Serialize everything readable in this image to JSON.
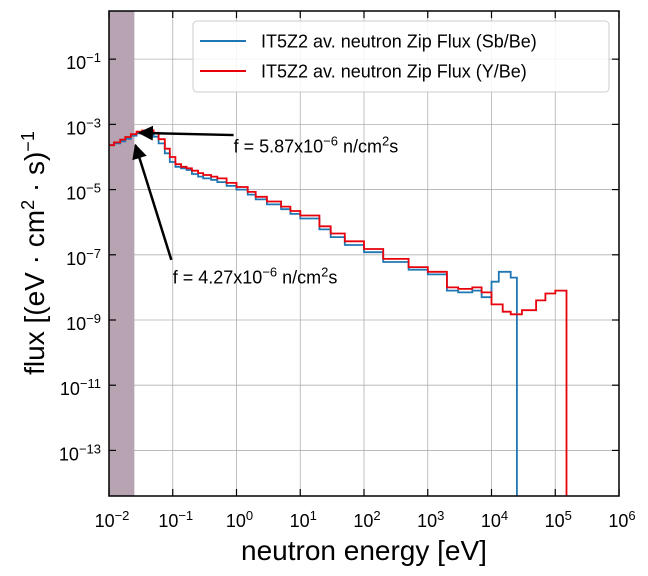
{
  "chart_data": {
    "type": "line",
    "title": "",
    "xlabel": "neutron energy [eV]",
    "ylabel": "flux [(eV · cm² · s)⁻¹]",
    "xscale": "log",
    "yscale": "log",
    "xlim": [
      0.01,
      1000000
    ],
    "ylim": [
      4e-15,
      3
    ],
    "xticks": [
      {
        "value": 0.01,
        "base": "10",
        "exp": "−2"
      },
      {
        "value": 0.1,
        "base": "10",
        "exp": "−1"
      },
      {
        "value": 1,
        "base": "10",
        "exp": "0"
      },
      {
        "value": 10,
        "base": "10",
        "exp": "1"
      },
      {
        "value": 100,
        "base": "10",
        "exp": "2"
      },
      {
        "value": 1000,
        "base": "10",
        "exp": "3"
      },
      {
        "value": 10000,
        "base": "10",
        "exp": "4"
      },
      {
        "value": 100000,
        "base": "10",
        "exp": "5"
      },
      {
        "value": 1000000,
        "base": "10",
        "exp": "6"
      }
    ],
    "yticks": [
      {
        "value": 1e-13,
        "base": "10",
        "exp": "−13"
      },
      {
        "value": 1e-11,
        "base": "10",
        "exp": "−11"
      },
      {
        "value": 1e-09,
        "base": "10",
        "exp": "−9"
      },
      {
        "value": 1e-07,
        "base": "10",
        "exp": "−7"
      },
      {
        "value": 1e-05,
        "base": "10",
        "exp": "−5"
      },
      {
        "value": 0.001,
        "base": "10",
        "exp": "−3"
      },
      {
        "value": 0.1,
        "base": "10",
        "exp": "−1"
      }
    ],
    "grid": true,
    "legend_position": "top-right",
    "shaded_region": {
      "x": [
        0.01,
        0.025
      ],
      "color": "#b8a3b2"
    },
    "series": [
      {
        "name": "IT5Z2 av. neutron Zip Flux (Sb/Be)",
        "color": "#1f77b4",
        "draw": "steps-post",
        "x": [
          0.01,
          0.012,
          0.015,
          0.018,
          0.022,
          0.027,
          0.033,
          0.04,
          0.05,
          0.06,
          0.075,
          0.09,
          0.11,
          0.135,
          0.165,
          0.2,
          0.25,
          0.3,
          0.4,
          0.5,
          0.7,
          1,
          1.5,
          2,
          3,
          5,
          7,
          10,
          20,
          30,
          50,
          100,
          200,
          500,
          1000,
          2000,
          3000,
          5000,
          7000,
          10000,
          13000,
          17000,
          20000,
          25000
        ],
        "y": [
          0.00023,
          0.00026,
          0.0003,
          0.00036,
          0.00045,
          0.00053,
          0.00058,
          0.00055,
          0.00042,
          0.00026,
          0.00013,
          7e-05,
          5e-05,
          4.5e-05,
          4e-05,
          3e-05,
          2.5e-05,
          2.2e-05,
          2e-05,
          1.7e-05,
          1.3e-05,
          1e-05,
          7e-06,
          5e-06,
          3.5e-06,
          2.5e-06,
          1.8e-06,
          1.3e-06,
          6e-07,
          3.5e-07,
          2e-07,
          1.2e-07,
          6e-08,
          3.5e-08,
          2.5e-08,
          8e-09,
          7e-09,
          8e-09,
          5e-09,
          1.5e-08,
          3e-08,
          3e-08,
          2e-08,
          1e-15
        ]
      },
      {
        "name": "IT5Z2 av. neutron Zip Flux (Y/Be)",
        "color": "#e8000b",
        "draw": "steps-post",
        "x": [
          0.01,
          0.012,
          0.015,
          0.018,
          0.022,
          0.027,
          0.033,
          0.04,
          0.05,
          0.06,
          0.075,
          0.09,
          0.11,
          0.135,
          0.165,
          0.2,
          0.25,
          0.3,
          0.4,
          0.5,
          0.7,
          1,
          1.5,
          2,
          3,
          5,
          7,
          10,
          20,
          30,
          50,
          100,
          200,
          500,
          1000,
          2000,
          3000,
          5000,
          7000,
          10000,
          15000,
          20000,
          30000,
          50000,
          70000,
          100000,
          150000
        ],
        "y": [
          0.00023,
          0.00028,
          0.00034,
          0.00041,
          0.0005,
          0.0006,
          0.00065,
          0.00066,
          0.00055,
          0.00035,
          0.00018,
          0.0001,
          6e-05,
          5e-05,
          4.5e-05,
          3.8e-05,
          3.2e-05,
          2.8e-05,
          2.5e-05,
          2.2e-05,
          1.6e-05,
          1.2e-05,
          8.5e-06,
          6e-06,
          4.3e-06,
          3e-06,
          2.2e-06,
          1.6e-06,
          7.5e-07,
          4.5e-07,
          2.6e-07,
          1.5e-07,
          7.5e-08,
          4.2e-08,
          3e-08,
          1e-08,
          9e-09,
          1e-08,
          7e-09,
          3e-09,
          1.8e-09,
          1.5e-09,
          2e-09,
          4e-09,
          6.5e-09,
          8e-09,
          1e-15
        ]
      }
    ],
    "annotations": [
      {
        "label": "f = 5.87x10",
        "exp": "−6",
        "unit": " n/cm",
        "unit_exp": "2",
        "unit_tail": "s",
        "text_at": [
          0.9,
          0.000135
        ],
        "tail": [
          0.9,
          0.00047
        ],
        "head": [
          0.03,
          0.00055
        ]
      },
      {
        "label": "f = 4.27x10",
        "exp": "−6",
        "unit": " n/cm",
        "unit_exp": "2",
        "unit_tail": "s",
        "text_at": [
          0.1,
          1.3e-08
        ],
        "tail": [
          0.095,
          7e-08
        ],
        "head": [
          0.026,
          0.00023
        ]
      }
    ]
  }
}
